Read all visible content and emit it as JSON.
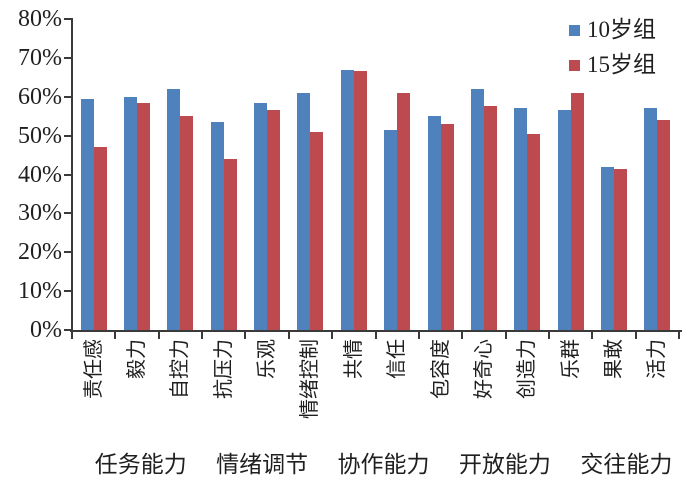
{
  "chart_data": {
    "type": "bar",
    "title": "",
    "xlabel": "",
    "ylabel": "",
    "ylim": [
      0,
      80
    ],
    "y_tick_step": 10,
    "y_tick_labels": [
      "0%",
      "10%",
      "20%",
      "30%",
      "40%",
      "50%",
      "60%",
      "70%",
      "80%"
    ],
    "grid": false,
    "legend_position": "top-right",
    "categories": [
      "责任感",
      "毅力",
      "自控力",
      "抗压力",
      "乐观",
      "情绪控制",
      "共情",
      "信任",
      "包容度",
      "好奇心",
      "创造力",
      "乐群",
      "果敢",
      "活力"
    ],
    "series": [
      {
        "name": "10岁组",
        "color": "#4f81bd",
        "values": [
          59.5,
          60,
          62,
          53.5,
          58.5,
          61,
          67,
          51.5,
          55,
          62,
          57,
          56.5,
          42,
          57
        ]
      },
      {
        "name": "15岁组",
        "color": "#bd4a4e",
        "values": [
          47,
          58.5,
          55,
          44,
          56.5,
          51,
          66.5,
          61,
          53,
          57.5,
          50.5,
          61,
          41.5,
          54
        ]
      }
    ],
    "category_group_labels": [
      "任务能力",
      "情绪调节",
      "协作能力",
      "开放能力",
      "交往能力"
    ]
  },
  "colors": {
    "axis": "#3a3a3a",
    "text": "#1f1f1f",
    "background": "#ffffff"
  }
}
